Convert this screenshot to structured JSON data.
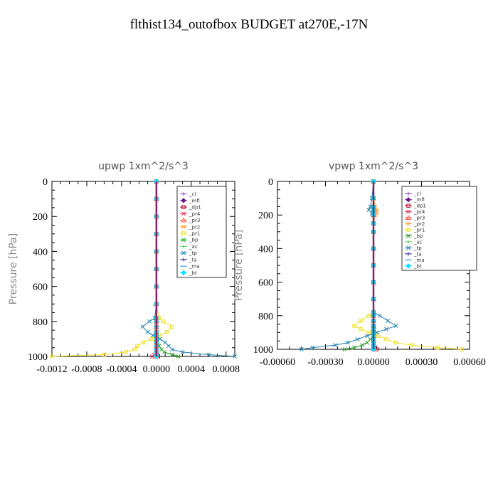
{
  "figure_title": "flthist134_outofbox  BUDGET at270E,-17N",
  "chart_data": [
    {
      "type": "line",
      "title": "upwp  1xm^2/s^3",
      "ylabel": "Pressure [hPa]",
      "xlabel": "",
      "xlim": [
        -0.0012,
        0.0009
      ],
      "ylim": [
        1000,
        0
      ],
      "x_ticks": [
        -0.0012,
        -0.0008,
        -0.0004,
        0.0,
        0.0004,
        0.0008
      ],
      "x_tick_labels": [
        "-0.0012",
        "-0.0008",
        "-0.0004",
        "0.0000",
        "0.0004",
        "0.0008"
      ],
      "y_ticks": [
        0,
        200,
        400,
        600,
        800,
        1000
      ],
      "y_tick_labels": [
        "0",
        "200",
        "400",
        "600",
        "800",
        "1000"
      ],
      "legend_position": "top-right",
      "pressure_levels": [
        0,
        100,
        200,
        300,
        400,
        500,
        600,
        700,
        780,
        800,
        830,
        860,
        880,
        900,
        920,
        940,
        960,
        975,
        990,
        1000
      ],
      "series": [
        {
          "name": "_cl",
          "color": "#9b3fbf",
          "marker": "plus",
          "values": [
            0,
            0,
            0,
            0,
            0,
            0,
            0,
            0,
            0,
            0,
            0,
            0,
            0,
            0,
            0,
            0,
            0,
            0,
            0,
            0
          ]
        },
        {
          "name": "_mfl",
          "color": "#6a1a8a",
          "marker": "diamond",
          "values": [
            0,
            0,
            0,
            0,
            0,
            0,
            0,
            0,
            0,
            0,
            0,
            0,
            0,
            0,
            0,
            0,
            0,
            0,
            0,
            0
          ]
        },
        {
          "name": "_dp1",
          "color": "#b0002a",
          "marker": "square",
          "values": [
            0,
            0,
            0,
            0,
            0,
            0,
            0,
            0,
            0,
            0,
            0,
            0,
            0,
            0,
            0,
            0,
            0,
            0,
            1e-05,
            2e-05
          ]
        },
        {
          "name": "_pr4",
          "color": "#e0305a",
          "marker": "x",
          "values": [
            0,
            0,
            0,
            0,
            0,
            0,
            0,
            0,
            0,
            0,
            0,
            0,
            0,
            0,
            0,
            0,
            0,
            0,
            -3e-05,
            -5e-05
          ]
        },
        {
          "name": "_pr3",
          "color": "#ff5040",
          "marker": "triangle",
          "values": [
            0,
            0,
            0,
            0,
            0,
            0,
            0,
            0,
            0,
            0,
            0,
            0,
            0,
            0,
            0,
            0,
            0,
            0,
            0,
            0
          ]
        },
        {
          "name": "_pr2",
          "color": "#ffa040",
          "marker": "star",
          "values": [
            0,
            0,
            0,
            0,
            0,
            0,
            0,
            0,
            0,
            0,
            0,
            0,
            0,
            0,
            0,
            0,
            0,
            0,
            0,
            0
          ]
        },
        {
          "name": "_pr1",
          "color": "#f0e020",
          "marker": "square",
          "values": [
            0,
            0,
            0,
            0,
            0,
            0,
            0,
            0,
            3e-05,
            8e-05,
            0.00018,
            0.00012,
            4e-05,
            -6e-05,
            -0.00015,
            -0.00022,
            -0.00025,
            -0.00035,
            -0.0006,
            -0.0012
          ]
        },
        {
          "name": "_bp",
          "color": "#20a020",
          "marker": "x",
          "values": [
            0,
            0,
            0,
            0,
            0,
            0,
            0,
            0,
            0,
            0,
            0,
            0,
            0,
            0,
            1e-05,
            3e-05,
            6e-05,
            9e-05,
            0.00018,
            0.00025
          ]
        },
        {
          "name": "_ac",
          "color": "#60d060",
          "marker": "plus",
          "values": [
            0,
            0,
            0,
            0,
            0,
            0,
            0,
            0,
            0,
            0,
            0,
            0,
            0,
            0,
            0,
            0,
            0,
            0,
            0,
            0
          ]
        },
        {
          "name": "_tp",
          "color": "#2080b0",
          "marker": "x",
          "values": [
            0,
            0,
            0,
            0,
            0,
            0,
            0,
            0,
            -2e-05,
            -8e-05,
            -0.00016,
            -0.0001,
            -4e-05,
            4e-05,
            0.0001,
            0.00014,
            0.00018,
            0.0003,
            0.0006,
            0.0009
          ]
        },
        {
          "name": "_ta",
          "color": "#3030a0",
          "marker": "plus",
          "values": [
            0,
            0,
            0,
            0,
            0,
            0,
            0,
            0,
            0,
            0,
            0,
            0,
            0,
            0,
            0,
            0,
            0,
            0,
            0,
            0
          ]
        },
        {
          "name": "_ma",
          "color": "#30a0e0",
          "marker": "dash",
          "values": [
            0,
            0,
            0,
            0,
            0,
            0,
            0,
            0,
            0,
            0,
            0,
            0,
            0,
            0,
            0,
            0,
            0,
            0,
            0,
            0
          ]
        },
        {
          "name": "_bt",
          "color": "#00e0ff",
          "marker": "diamond",
          "values": [
            0,
            0,
            0,
            0,
            0,
            0,
            0,
            0,
            0,
            0,
            0,
            0,
            0,
            0,
            0,
            0,
            0,
            0,
            0,
            0
          ]
        }
      ]
    },
    {
      "type": "line",
      "title": "vpwp  1xm^2/s^3",
      "ylabel": "Pressure [hPa]",
      "xlabel": "",
      "xlim": [
        -0.0006,
        0.0006
      ],
      "ylim": [
        1000,
        0
      ],
      "x_ticks": [
        -0.0006,
        -0.0003,
        0.0,
        0.0003,
        0.0006
      ],
      "x_tick_labels": [
        "-0.00060",
        "-0.00030",
        "0.00000",
        "0.00030",
        "0.00060"
      ],
      "y_ticks": [
        0,
        200,
        400,
        600,
        800,
        1000
      ],
      "y_tick_labels": [
        "0",
        "200",
        "400",
        "600",
        "800",
        "1000"
      ],
      "legend_position": "top-right",
      "pressure_levels": [
        0,
        100,
        150,
        170,
        190,
        200,
        250,
        300,
        400,
        500,
        600,
        700,
        780,
        800,
        830,
        860,
        880,
        900,
        920,
        940,
        960,
        975,
        990,
        1000
      ],
      "series": [
        {
          "name": "_cl",
          "color": "#9b3fbf",
          "marker": "plus",
          "values": [
            0,
            0,
            0,
            0,
            0,
            0,
            0,
            0,
            0,
            0,
            0,
            0,
            0,
            0,
            0,
            0,
            0,
            0,
            0,
            0,
            0,
            0,
            0,
            0
          ]
        },
        {
          "name": "_mfl",
          "color": "#6a1a8a",
          "marker": "diamond",
          "values": [
            0,
            0,
            0,
            0,
            0,
            0,
            0,
            0,
            0,
            0,
            0,
            0,
            0,
            0,
            0,
            0,
            0,
            0,
            0,
            0,
            0,
            0,
            0,
            0
          ]
        },
        {
          "name": "_dp1",
          "color": "#b0002a",
          "marker": "square",
          "values": [
            0,
            0,
            0,
            0,
            0,
            0,
            0,
            0,
            0,
            0,
            0,
            0,
            0,
            0,
            0,
            0,
            0,
            0,
            0,
            0,
            0,
            0,
            1e-05,
            2e-05
          ]
        },
        {
          "name": "_pr4",
          "color": "#e0305a",
          "marker": "x",
          "values": [
            0,
            0,
            0,
            0,
            0,
            0,
            0,
            0,
            0,
            0,
            0,
            0,
            0,
            0,
            0,
            0,
            0,
            0,
            0,
            0,
            0,
            0,
            0,
            0
          ]
        },
        {
          "name": "_pr3",
          "color": "#ff5040",
          "marker": "triangle",
          "values": [
            0,
            0,
            0,
            0,
            0,
            0,
            0,
            0,
            0,
            0,
            0,
            0,
            0,
            0,
            0,
            0,
            0,
            0,
            0,
            0,
            0,
            0,
            0,
            0
          ]
        },
        {
          "name": "_pr2",
          "color": "#ffa040",
          "marker": "star",
          "values": [
            0,
            0,
            1e-05,
            2e-05,
            2e-05,
            1e-05,
            0,
            0,
            0,
            0,
            0,
            0,
            0,
            0,
            0,
            0,
            0,
            0,
            0,
            0,
            0,
            0,
            0,
            0
          ]
        },
        {
          "name": "_pr1",
          "color": "#f0e020",
          "marker": "square",
          "values": [
            0,
            0,
            0,
            0,
            0,
            0,
            0,
            0,
            0,
            0,
            0,
            0,
            0,
            -3e-05,
            -8e-05,
            -0.00012,
            -8e-05,
            -3e-05,
            3e-05,
            8e-05,
            0.00014,
            0.00024,
            0.0004,
            0.00055
          ]
        },
        {
          "name": "_bp",
          "color": "#20a020",
          "marker": "x",
          "values": [
            0,
            0,
            0,
            0,
            0,
            0,
            0,
            0,
            0,
            0,
            0,
            0,
            0,
            0,
            0,
            0,
            0,
            0,
            0,
            -2e-05,
            -4e-05,
            -7e-05,
            -0.00012,
            -0.00018
          ]
        },
        {
          "name": "_ac",
          "color": "#60d060",
          "marker": "plus",
          "values": [
            0,
            0,
            0,
            0,
            0,
            0,
            0,
            0,
            0,
            0,
            0,
            0,
            0,
            0,
            0,
            0,
            0,
            0,
            0,
            0,
            0,
            0,
            0,
            0
          ]
        },
        {
          "name": "_tp",
          "color": "#2080b0",
          "marker": "x",
          "values": [
            0,
            -1e-05,
            -2e-05,
            -3e-05,
            -1e-05,
            0,
            0,
            0,
            0,
            0,
            0,
            0,
            0,
            4e-05,
            9e-05,
            0.00014,
            8e-05,
            2e-05,
            -4e-05,
            -0.0001,
            -0.00016,
            -0.00024,
            -0.00038,
            -0.00045
          ]
        },
        {
          "name": "_ta",
          "color": "#3030a0",
          "marker": "plus",
          "values": [
            0,
            0,
            0,
            0,
            0,
            0,
            0,
            0,
            0,
            0,
            0,
            0,
            0,
            0,
            0,
            0,
            0,
            0,
            0,
            0,
            0,
            0,
            0,
            0
          ]
        },
        {
          "name": "_ma",
          "color": "#30a0e0",
          "marker": "dash",
          "values": [
            0,
            0,
            0,
            0,
            0,
            0,
            0,
            0,
            0,
            0,
            0,
            0,
            0,
            0,
            0,
            0,
            0,
            0,
            0,
            0,
            0,
            0,
            0,
            0
          ]
        },
        {
          "name": "_bt",
          "color": "#00e0ff",
          "marker": "diamond",
          "values": [
            0,
            0,
            0,
            0,
            0,
            0,
            0,
            0,
            0,
            0,
            0,
            0,
            0,
            0,
            0,
            0,
            0,
            0,
            0,
            0,
            0,
            0,
            0,
            0
          ]
        }
      ]
    }
  ]
}
